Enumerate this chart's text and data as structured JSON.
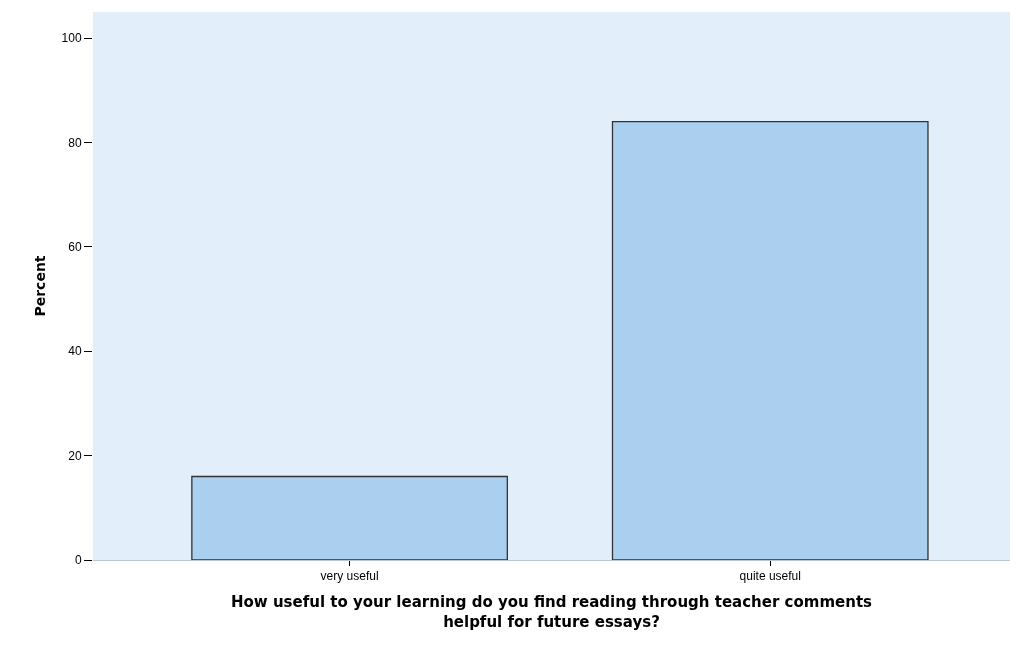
{
  "chart_data": {
    "type": "bar",
    "xlabel": "How useful to your learning do you find reading through teacher comments helpful for future essays?",
    "ylabel": "Percent",
    "categories": [
      "very useful",
      "quite useful"
    ],
    "values": [
      16,
      84
    ],
    "color": "#abcfee",
    "ylim": [
      0,
      105
    ],
    "yticks": [
      0,
      20,
      40,
      60,
      80,
      100
    ],
    "grid": false
  }
}
